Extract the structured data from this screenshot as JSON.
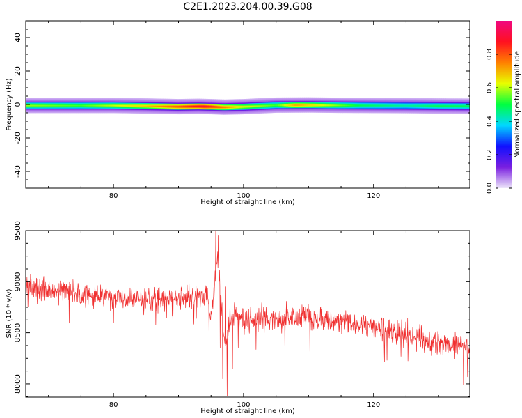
{
  "figure": {
    "title": "C2E1.2023.204.00.39.G08"
  },
  "chart_data": [
    {
      "type": "heatmap",
      "xlabel": "Height of straight line (km)",
      "ylabel": "Frequency (Hz)",
      "xlim": [
        66.5,
        134.8
      ],
      "ylim": [
        -50,
        50
      ],
      "xticks": [
        80,
        100,
        120
      ],
      "yticks": [
        -40,
        -20,
        0,
        20,
        40
      ],
      "colorbar": {
        "label": "Normalized spectral amplitude",
        "range": [
          0,
          1
        ],
        "ticks": [
          "0.0",
          "0.2",
          "0.4",
          "0.6",
          "0.8"
        ],
        "colormap": [
          "#ede6fa",
          "#7a1fe0",
          "#1010ff",
          "#00d8ff",
          "#00ff40",
          "#e8ff00",
          "#ff8000",
          "#ff1020",
          "#f00880"
        ]
      },
      "band": {
        "center_frequency_hz": [
          [
            66.5,
            -0.5
          ],
          [
            70,
            -0.5
          ],
          [
            75,
            -0.5
          ],
          [
            80,
            -0.5
          ],
          [
            85,
            -0.8
          ],
          [
            90,
            -1.2
          ],
          [
            93,
            -1.0
          ],
          [
            95,
            -1.2
          ],
          [
            97,
            -1.5
          ],
          [
            100,
            -1.2
          ],
          [
            105,
            -0.3
          ],
          [
            110,
            -0.2
          ],
          [
            115,
            -0.4
          ],
          [
            120,
            -0.5
          ],
          [
            125,
            -0.6
          ],
          [
            130,
            -0.8
          ],
          [
            134.5,
            -0.9
          ]
        ],
        "core_halfwidth_hz": 2.4,
        "halo_halfwidth_hz": 4.5,
        "peak_amplitude": [
          [
            66.5,
            0.6
          ],
          [
            75,
            0.55
          ],
          [
            85,
            0.7
          ],
          [
            90,
            0.85
          ],
          [
            94,
            0.95
          ],
          [
            97,
            0.8
          ],
          [
            100,
            0.65
          ],
          [
            105,
            0.55
          ],
          [
            108,
            0.75
          ],
          [
            112,
            0.65
          ],
          [
            118,
            0.5
          ],
          [
            125,
            0.45
          ],
          [
            130,
            0.5
          ],
          [
            134.5,
            0.5
          ]
        ]
      }
    },
    {
      "type": "line",
      "xlabel": "Height of straight line (km)",
      "ylabel": "SNR (10 * v/v)",
      "xlim": [
        66.5,
        134.8
      ],
      "ylim": [
        7870,
        9500
      ],
      "xticks": [
        80,
        100,
        120
      ],
      "yticks": [
        8000,
        8500,
        9000,
        9500
      ],
      "series": [
        {
          "color": "#f03030",
          "trend": [
            [
              66.5,
              8950
            ],
            [
              70,
              8920
            ],
            [
              75,
              8880
            ],
            [
              80,
              8850
            ],
            [
              85,
              8820
            ],
            [
              90,
              8840
            ],
            [
              94.5,
              8860
            ],
            [
              95,
              8600
            ],
            [
              96,
              9250
            ],
            [
              97,
              8400
            ],
            [
              98.5,
              8700
            ],
            [
              100,
              8620
            ],
            [
              105,
              8650
            ],
            [
              110,
              8650
            ],
            [
              115,
              8620
            ],
            [
              120,
              8560
            ],
            [
              125,
              8480
            ],
            [
              130,
              8400
            ],
            [
              134.8,
              8350
            ]
          ],
          "noise_amplitude": 110,
          "spikes": [
            [
              94.7,
              8480
            ],
            [
              95.2,
              8750
            ],
            [
              95.7,
              9500
            ],
            [
              96.1,
              9450
            ],
            [
              96.4,
              8350
            ],
            [
              96.8,
              8050
            ],
            [
              97.2,
              8950
            ],
            [
              97.5,
              7880
            ],
            [
              97.9,
              8800
            ],
            [
              98.3,
              8150
            ]
          ]
        }
      ]
    }
  ]
}
